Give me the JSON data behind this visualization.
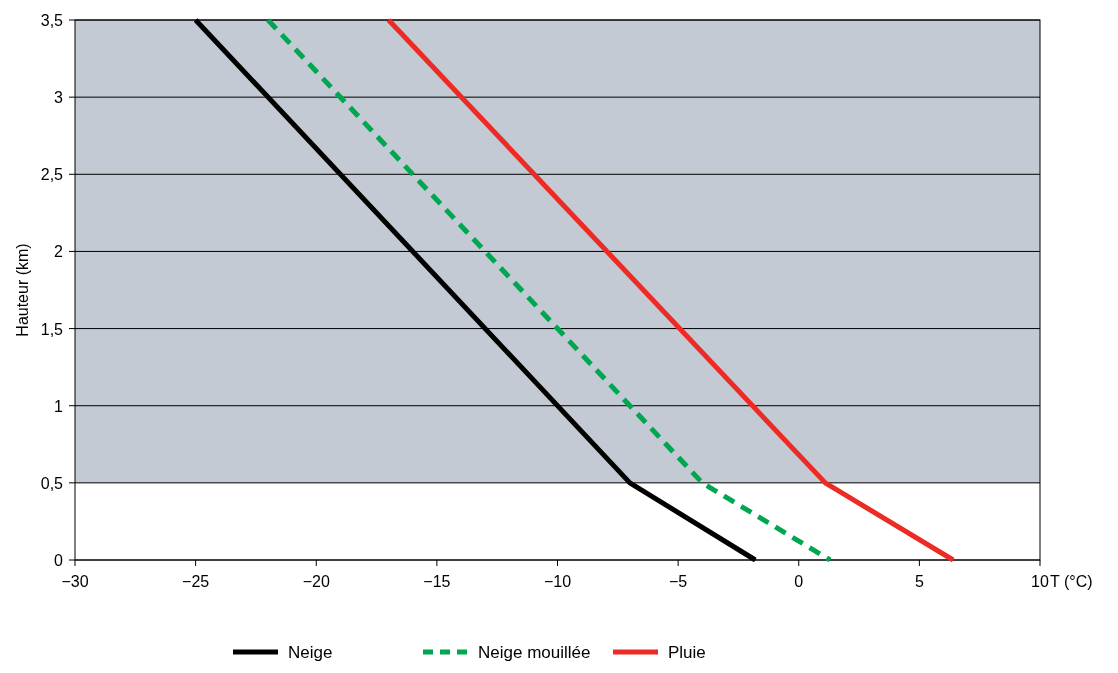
{
  "chart_data": {
    "type": "line",
    "xlabel": "T (°C)",
    "ylabel": "Hauteur (km)",
    "xlim": [
      -30,
      10
    ],
    "xticks": [
      {
        "value": -30,
        "label": "−30"
      },
      {
        "value": -25,
        "label": "−25"
      },
      {
        "value": -20,
        "label": "−20"
      },
      {
        "value": -15,
        "label": "−15"
      },
      {
        "value": -10,
        "label": "−10"
      },
      {
        "value": -5,
        "label": "−5"
      },
      0,
      5,
      10
    ],
    "ylim": [
      0,
      3.5
    ],
    "yticks": [
      0,
      {
        "value": 0.5,
        "label": "0,5"
      },
      1,
      {
        "value": 1.5,
        "label": "1,5"
      },
      2,
      {
        "value": 2.5,
        "label": "2,5"
      },
      3,
      {
        "value": 3.5,
        "label": "3,5"
      }
    ],
    "grid": "y",
    "legend": "bottom",
    "marker": "none",
    "bands": [
      {
        "axis": "y",
        "from": 0.5,
        "to": 3.5,
        "color": "#c3cad3"
      }
    ],
    "series": [
      {
        "name": "Neige",
        "color": "#000000",
        "line_style": "solid",
        "x": [
          -25,
          -7,
          -1.8
        ],
        "values": [
          3.5,
          0.5,
          0
        ]
      },
      {
        "name": "Neige mouillée",
        "color": "#00a650",
        "line_style": "dashed",
        "x": [
          -22,
          -4,
          1.3
        ],
        "values": [
          3.5,
          0.5,
          0
        ]
      },
      {
        "name": "Pluie",
        "color": "#ee2a24",
        "line_style": "solid",
        "x": [
          -17,
          1.1,
          6.4
        ],
        "values": [
          3.5,
          0.5,
          0
        ]
      }
    ]
  }
}
